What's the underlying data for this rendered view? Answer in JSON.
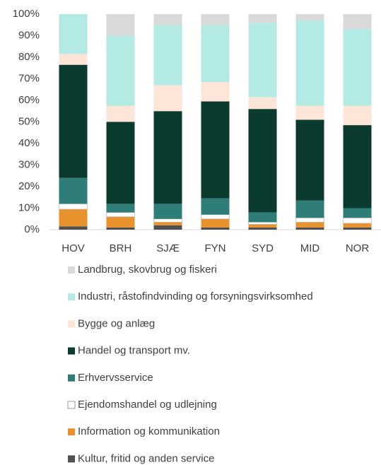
{
  "chart_data": {
    "type": "stacked-bar",
    "categories": [
      "HOV",
      "BRH",
      "SJÆ",
      "FYN",
      "SYD",
      "MID",
      "NOR"
    ],
    "series": [
      {
        "name": "Landbrug, skovbrug og fiskeri",
        "color": "#d9d9d9",
        "values": [
          0,
          10,
          5,
          5,
          4,
          3,
          7
        ]
      },
      {
        "name": "Industri, råstofindvinding og forsyningsvirksomhed",
        "color": "#b3ebe4",
        "values": [
          18.5,
          32.5,
          28,
          26.5,
          34.5,
          39.5,
          35.5
        ]
      },
      {
        "name": "Bygge og anlæg",
        "color": "#fde6d8",
        "values": [
          5,
          7.5,
          12,
          9,
          5.5,
          6.5,
          9
        ]
      },
      {
        "name": "Handel og transport mv.",
        "color": "#0b3a2e",
        "values": [
          52.5,
          38,
          43,
          45,
          48,
          37.5,
          38.5
        ]
      },
      {
        "name": "Erhvervsservice",
        "color": "#2e7d76",
        "values": [
          12,
          4,
          7,
          7.5,
          4.5,
          8,
          4.5
        ]
      },
      {
        "name": "Ejendomshandel og udlejning",
        "color": "#ffffff",
        "values": [
          2.5,
          2,
          1.5,
          2,
          1,
          2,
          2.5
        ]
      },
      {
        "name": "Information og kommunikation",
        "color": "#e8922e",
        "values": [
          8,
          5,
          1.5,
          4,
          1.5,
          2.5,
          2
        ]
      },
      {
        "name": "Kultur, fritid og anden service",
        "color": "#505050",
        "values": [
          1.5,
          1,
          2,
          1,
          1,
          1,
          1
        ]
      }
    ],
    "ylim": [
      0,
      100
    ],
    "yticks": [
      {
        "value": 0,
        "label": "0%"
      },
      {
        "value": 10,
        "label": "10%"
      },
      {
        "value": 20,
        "label": "20%"
      },
      {
        "value": 30,
        "label": "30%"
      },
      {
        "value": 40,
        "label": "40%"
      },
      {
        "value": 50,
        "label": "50%"
      },
      {
        "value": 60,
        "label": "60%"
      },
      {
        "value": 70,
        "label": "70%"
      },
      {
        "value": 80,
        "label": "80%"
      },
      {
        "value": 90,
        "label": "90%"
      },
      {
        "value": 100,
        "label": "100%"
      }
    ]
  }
}
